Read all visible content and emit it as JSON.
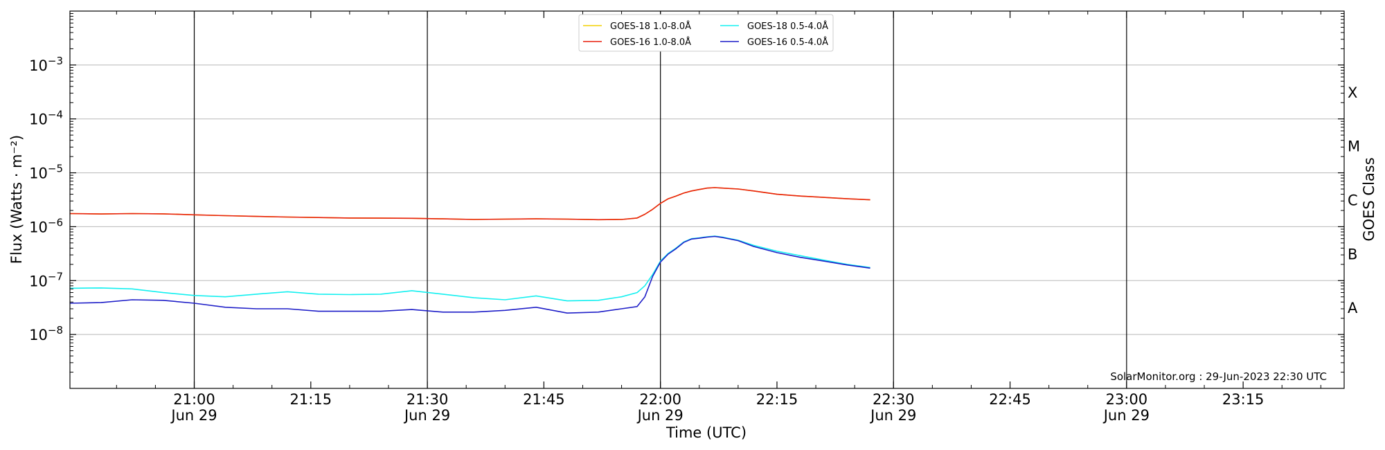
{
  "chart_data": {
    "type": "line",
    "title": "",
    "xlabel": "Time (UTC)",
    "ylabel": "Flux (Watts · m⁻²)",
    "y2label": "GOES Class",
    "yscale": "log",
    "ylim": [
      1e-09,
      0.01
    ],
    "xlim": [
      "20:44",
      "23:28"
    ],
    "grid": "horizontal",
    "legend_position": "top-center",
    "credit": "SolarMonitor.org : 29-Jun-2023 22:30 UTC",
    "x_ticks": [
      {
        "time": "21:00",
        "date": "Jun 29",
        "line": true
      },
      {
        "time": "21:15",
        "date": "",
        "line": false
      },
      {
        "time": "21:30",
        "date": "Jun 29",
        "line": true
      },
      {
        "time": "21:45",
        "date": "",
        "line": false
      },
      {
        "time": "22:00",
        "date": "Jun 29",
        "line": true
      },
      {
        "time": "22:15",
        "date": "",
        "line": false
      },
      {
        "time": "22:30",
        "date": "Jun 29",
        "line": true
      },
      {
        "time": "22:45",
        "date": "",
        "line": false
      },
      {
        "time": "23:00",
        "date": "Jun 29",
        "line": true
      },
      {
        "time": "23:15",
        "date": "",
        "line": false
      }
    ],
    "y_ticks": [
      {
        "exp": -3,
        "label": "10",
        "sup": "−3"
      },
      {
        "exp": -4,
        "label": "10",
        "sup": "−4"
      },
      {
        "exp": -5,
        "label": "10",
        "sup": "−5"
      },
      {
        "exp": -6,
        "label": "10",
        "sup": "−6"
      },
      {
        "exp": -7,
        "label": "10",
        "sup": "−7"
      },
      {
        "exp": -8,
        "label": "10",
        "sup": "−8"
      }
    ],
    "goes_classes": [
      {
        "label": "X",
        "exp": -3.5
      },
      {
        "label": "M",
        "exp": -4.5
      },
      {
        "label": "C",
        "exp": -5.5
      },
      {
        "label": "B",
        "exp": -6.5
      },
      {
        "label": "A",
        "exp": -7.5
      }
    ],
    "x": [
      "20:44",
      "20:48",
      "20:52",
      "20:56",
      "21:00",
      "21:04",
      "21:08",
      "21:12",
      "21:16",
      "21:20",
      "21:24",
      "21:28",
      "21:32",
      "21:36",
      "21:40",
      "21:44",
      "21:48",
      "21:52",
      "21:55",
      "21:57",
      "21:58",
      "21:59",
      "22:00",
      "22:01",
      "22:02",
      "22:03",
      "22:04",
      "22:05",
      "22:06",
      "22:07",
      "22:08",
      "22:10",
      "22:12",
      "22:15",
      "22:18",
      "22:21",
      "22:24",
      "22:27"
    ],
    "series": [
      {
        "name": "GOES-18 1.0-8.0Å",
        "color": "#f2d100",
        "values": [
          1.75e-06,
          1.72e-06,
          1.75e-06,
          1.73e-06,
          1.66e-06,
          1.6e-06,
          1.55e-06,
          1.51e-06,
          1.48e-06,
          1.45e-06,
          1.44e-06,
          1.43e-06,
          1.4e-06,
          1.36e-06,
          1.38e-06,
          1.4e-06,
          1.38e-06,
          1.35e-06,
          1.36e-06,
          1.45e-06,
          1.7e-06,
          2.1e-06,
          2.7e-06,
          3.3e-06,
          3.7e-06,
          4.2e-06,
          4.6e-06,
          4.9e-06,
          5.2e-06,
          5.3e-06,
          5.2e-06,
          5e-06,
          4.6e-06,
          4e-06,
          3.7e-06,
          3.5e-06,
          3.3e-06,
          3.15e-06
        ]
      },
      {
        "name": "GOES-16 1.0-8.0Å",
        "color": "#e8200e",
        "values": [
          1.75e-06,
          1.72e-06,
          1.75e-06,
          1.73e-06,
          1.66e-06,
          1.6e-06,
          1.55e-06,
          1.51e-06,
          1.48e-06,
          1.45e-06,
          1.44e-06,
          1.43e-06,
          1.4e-06,
          1.36e-06,
          1.38e-06,
          1.4e-06,
          1.38e-06,
          1.35e-06,
          1.36e-06,
          1.45e-06,
          1.7e-06,
          2.1e-06,
          2.7e-06,
          3.3e-06,
          3.7e-06,
          4.2e-06,
          4.6e-06,
          4.9e-06,
          5.2e-06,
          5.3e-06,
          5.2e-06,
          5e-06,
          4.6e-06,
          4e-06,
          3.7e-06,
          3.5e-06,
          3.3e-06,
          3.15e-06
        ]
      },
      {
        "name": "GOES-18 0.5-4.0Å",
        "color": "#13f0f0",
        "values": [
          7.2e-08,
          7.3e-08,
          7e-08,
          6e-08,
          5.3e-08,
          5e-08,
          5.6e-08,
          6.2e-08,
          5.6e-08,
          5.5e-08,
          5.6e-08,
          6.5e-08,
          5.6e-08,
          4.8e-08,
          4.4e-08,
          5.2e-08,
          4.2e-08,
          4.3e-08,
          5e-08,
          6e-08,
          8e-08,
          1.3e-07,
          2.3e-07,
          3.2e-07,
          4e-07,
          5.2e-07,
          6e-07,
          6.2e-07,
          6.5e-07,
          6.7e-07,
          6.4e-07,
          5.6e-07,
          4.5e-07,
          3.5e-07,
          2.9e-07,
          2.4e-07,
          2e-07,
          1.75e-07
        ]
      },
      {
        "name": "GOES-16 0.5-4.0Å",
        "color": "#1f1fc8",
        "values": [
          3.8e-08,
          3.9e-08,
          4.4e-08,
          4.3e-08,
          3.8e-08,
          3.2e-08,
          3e-08,
          3e-08,
          2.7e-08,
          2.7e-08,
          2.7e-08,
          2.9e-08,
          2.6e-08,
          2.6e-08,
          2.8e-08,
          3.2e-08,
          2.5e-08,
          2.6e-08,
          3e-08,
          3.3e-08,
          5e-08,
          1.2e-07,
          2.2e-07,
          3.1e-07,
          3.9e-07,
          5.1e-07,
          5.9e-07,
          6.1e-07,
          6.4e-07,
          6.6e-07,
          6.3e-07,
          5.5e-07,
          4.3e-07,
          3.3e-07,
          2.7e-07,
          2.3e-07,
          1.95e-07,
          1.7e-07
        ]
      }
    ]
  }
}
